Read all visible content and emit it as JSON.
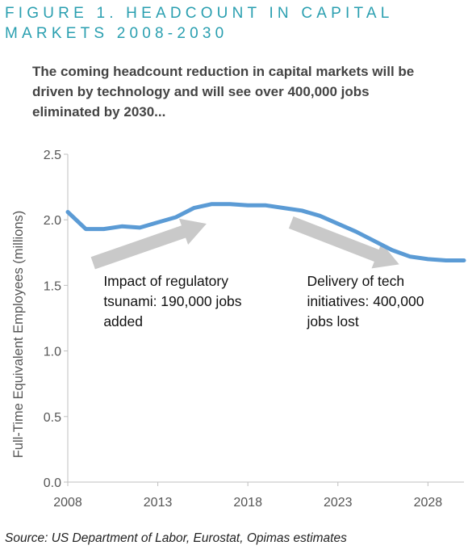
{
  "figure": {
    "title_line1": "FIGURE 1. HEADCOUNT IN CAPITAL",
    "title_line2": "MARKETS 2008-2030",
    "subtitle": "The coming headcount reduction in capital markets will be driven by technology and will see over 400,000 jobs eliminated by 2030...",
    "source": "Source: US Department of Labor, Eurostat, Opimas estimates"
  },
  "colors": {
    "title": "#2a9fb0",
    "line": "#5b9bd5",
    "arrow": "#c9c9c9"
  },
  "chart_data": {
    "type": "line",
    "ylabel": "Full-Time Equivalent Employees (millions)",
    "xlabel": "",
    "xlim": [
      2008,
      2030
    ],
    "ylim": [
      0,
      2.5
    ],
    "xticks": [
      2008,
      2013,
      2018,
      2023,
      2028
    ],
    "xtick_labels": [
      "2008",
      "2013",
      "2018",
      "2023",
      "2028"
    ],
    "yticks": [
      0,
      0.5,
      1.0,
      1.5,
      2.0,
      2.5
    ],
    "ytick_labels": [
      "0.0",
      "0.5",
      "1.0",
      "1.5",
      "2.0",
      "2.5"
    ],
    "grid": false,
    "series": [
      {
        "x": [
          2008,
          2009,
          2010,
          2011,
          2012,
          2013,
          2014,
          2015,
          2016,
          2017,
          2018,
          2019,
          2020,
          2021,
          2022,
          2023,
          2024,
          2025,
          2026,
          2027,
          2028,
          2029,
          2030
        ],
        "values": [
          2.06,
          1.93,
          1.93,
          1.95,
          1.94,
          1.98,
          2.02,
          2.09,
          2.12,
          2.12,
          2.11,
          2.11,
          2.09,
          2.07,
          2.03,
          1.97,
          1.91,
          1.84,
          1.77,
          1.72,
          1.7,
          1.69,
          1.69
        ]
      }
    ],
    "annotations": [
      {
        "lines": [
          "Impact of regulatory",
          "tsunami: 190,000 jobs",
          "added"
        ],
        "arrow": {
          "from": [
            2009.4,
            1.67
          ],
          "to": [
            2015.7,
            1.97
          ],
          "direction": "up"
        }
      },
      {
        "lines": [
          "Delivery of tech",
          "initiatives: 400,000",
          "jobs lost"
        ],
        "arrow": {
          "from": [
            2020.4,
            1.98
          ],
          "to": [
            2026.4,
            1.66
          ],
          "direction": "down"
        }
      }
    ],
    "annotation_positions_years": [
      [
        2009,
        1.41
      ],
      [
        2020.3,
        1.41
      ]
    ]
  }
}
